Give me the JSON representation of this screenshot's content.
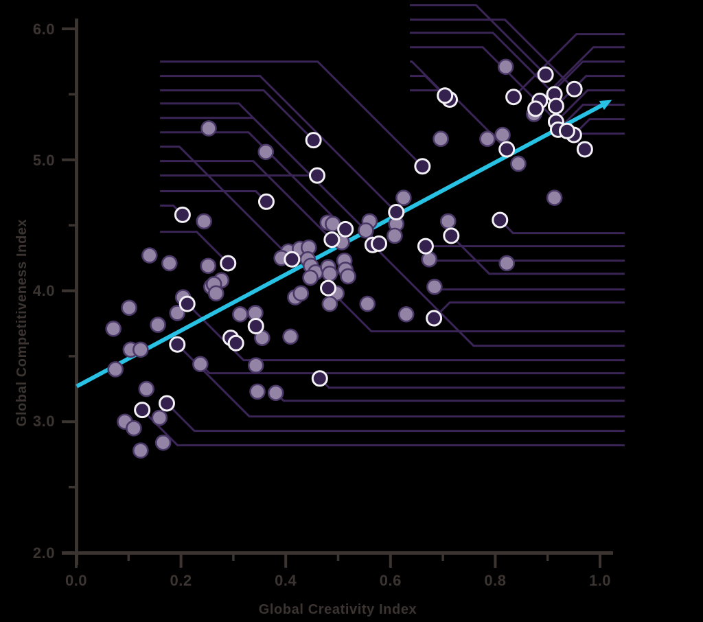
{
  "chart_data": {
    "type": "scatter",
    "title": "",
    "xlabel": "Global Creativity Index",
    "ylabel": "Global Competitiveness Index",
    "xlim": [
      0.0,
      1.0
    ],
    "ylim": [
      2.0,
      6.0
    ],
    "grid": false,
    "legend": false,
    "x_ticks": [
      "0.0",
      "0.2",
      "0.4",
      "0.6",
      "0.8",
      "1.0"
    ],
    "x_tick_values": [
      0.0,
      0.2,
      0.4,
      0.6,
      0.8,
      1.0
    ],
    "x_minor_tick_values": [
      0.1,
      0.3,
      0.5,
      0.7,
      0.9
    ],
    "y_ticks": [
      "6.0",
      "5.0",
      "4.0",
      "3.0",
      "2.0"
    ],
    "y_tick_values": [
      6.0,
      5.0,
      4.0,
      3.0,
      2.0
    ],
    "y_minor_tick_values": [
      5.5,
      4.5,
      3.5,
      2.5
    ],
    "colors": {
      "background": "#000000",
      "axis": "#3b3431",
      "point_fill": "#9384a6",
      "point_stroke": "#4a3866",
      "highlight_fill": "#34214e",
      "highlight_stroke": "#f4f2f6",
      "leader_line": "#3a2556",
      "trend_line": "#28c2e5"
    },
    "trend_line": {
      "x1": 0.001,
      "y1": 3.27,
      "x2": 1.01,
      "y2": 5.43,
      "arrow": true
    },
    "points": [
      [
        0.82,
        5.71,
        "s"
      ],
      [
        0.896,
        5.65,
        "h"
      ],
      [
        0.951,
        5.54,
        "h"
      ],
      [
        0.913,
        5.5,
        "h"
      ],
      [
        0.885,
        5.45,
        "h"
      ],
      [
        0.877,
        5.39,
        "h"
      ],
      [
        0.916,
        5.41,
        "h"
      ],
      [
        0.874,
        5.35,
        "s"
      ],
      [
        0.916,
        5.29,
        "h"
      ],
      [
        0.92,
        5.23,
        "h"
      ],
      [
        0.95,
        5.19,
        "h"
      ],
      [
        0.937,
        5.22,
        "h"
      ],
      [
        0.971,
        5.08,
        "h"
      ],
      [
        0.814,
        5.19,
        "s"
      ],
      [
        0.785,
        5.16,
        "s"
      ],
      [
        0.822,
        5.08,
        "h"
      ],
      [
        0.844,
        4.97,
        "s"
      ],
      [
        0.913,
        4.71,
        "s"
      ],
      [
        0.809,
        4.54,
        "h"
      ],
      [
        0.822,
        4.21,
        "s"
      ],
      [
        0.713,
        5.46,
        "h"
      ],
      [
        0.704,
        5.49,
        "h"
      ],
      [
        0.835,
        5.48,
        "h"
      ],
      [
        0.453,
        5.15,
        "h"
      ],
      [
        0.46,
        4.88,
        "h"
      ],
      [
        0.661,
        4.95,
        "h"
      ],
      [
        0.696,
        5.16,
        "s"
      ],
      [
        0.625,
        4.71,
        "s"
      ],
      [
        0.253,
        5.24,
        "s"
      ],
      [
        0.362,
        5.06,
        "s"
      ],
      [
        0.363,
        4.68,
        "h"
      ],
      [
        0.203,
        4.58,
        "h"
      ],
      [
        0.244,
        4.53,
        "s"
      ],
      [
        0.14,
        4.27,
        "s"
      ],
      [
        0.178,
        4.21,
        "s"
      ],
      [
        0.252,
        4.19,
        "s"
      ],
      [
        0.29,
        4.21,
        "h"
      ],
      [
        0.277,
        4.08,
        "s"
      ],
      [
        0.258,
        4.03,
        "s"
      ],
      [
        0.263,
        4.05,
        "s"
      ],
      [
        0.267,
        3.98,
        "s"
      ],
      [
        0.204,
        3.95,
        "s"
      ],
      [
        0.212,
        3.9,
        "h"
      ],
      [
        0.193,
        3.83,
        "s"
      ],
      [
        0.156,
        3.74,
        "s"
      ],
      [
        0.101,
        3.87,
        "s"
      ],
      [
        0.071,
        3.71,
        "s"
      ],
      [
        0.104,
        3.55,
        "s"
      ],
      [
        0.123,
        3.55,
        "s"
      ],
      [
        0.193,
        3.59,
        "h"
      ],
      [
        0.237,
        3.44,
        "s"
      ],
      [
        0.295,
        3.64,
        "h"
      ],
      [
        0.305,
        3.6,
        "h"
      ],
      [
        0.313,
        3.82,
        "s"
      ],
      [
        0.342,
        3.83,
        "s"
      ],
      [
        0.343,
        3.73,
        "h"
      ],
      [
        0.355,
        3.64,
        "s"
      ],
      [
        0.409,
        3.65,
        "s"
      ],
      [
        0.418,
        3.95,
        "s"
      ],
      [
        0.429,
        3.98,
        "s"
      ],
      [
        0.405,
        4.3,
        "s"
      ],
      [
        0.412,
        4.24,
        "h"
      ],
      [
        0.392,
        4.25,
        "s"
      ],
      [
        0.427,
        4.32,
        "s"
      ],
      [
        0.444,
        4.33,
        "s"
      ],
      [
        0.442,
        4.24,
        "s"
      ],
      [
        0.448,
        4.19,
        "s"
      ],
      [
        0.457,
        4.14,
        "s"
      ],
      [
        0.447,
        4.1,
        "s"
      ],
      [
        0.481,
        4.18,
        "s"
      ],
      [
        0.484,
        4.13,
        "s"
      ],
      [
        0.512,
        4.23,
        "s"
      ],
      [
        0.514,
        4.16,
        "s"
      ],
      [
        0.519,
        4.11,
        "s"
      ],
      [
        0.481,
        4.02,
        "h"
      ],
      [
        0.497,
        3.98,
        "s"
      ],
      [
        0.484,
        3.9,
        "s"
      ],
      [
        0.556,
        3.9,
        "s"
      ],
      [
        0.63,
        3.82,
        "s"
      ],
      [
        0.683,
        3.79,
        "h"
      ],
      [
        0.684,
        4.03,
        "s"
      ],
      [
        0.674,
        4.24,
        "s"
      ],
      [
        0.611,
        4.6,
        "h"
      ],
      [
        0.611,
        4.51,
        "s"
      ],
      [
        0.48,
        4.52,
        "s"
      ],
      [
        0.49,
        4.51,
        "s"
      ],
      [
        0.514,
        4.47,
        "h"
      ],
      [
        0.56,
        4.53,
        "s"
      ],
      [
        0.553,
        4.46,
        "s"
      ],
      [
        0.488,
        4.39,
        "h"
      ],
      [
        0.507,
        4.37,
        "s"
      ],
      [
        0.566,
        4.35,
        "h"
      ],
      [
        0.578,
        4.36,
        "h"
      ],
      [
        0.608,
        4.42,
        "s"
      ],
      [
        0.71,
        4.53,
        "s"
      ],
      [
        0.716,
        4.42,
        "h"
      ],
      [
        0.667,
        4.34,
        "h"
      ],
      [
        0.465,
        3.33,
        "h"
      ],
      [
        0.381,
        3.22,
        "s"
      ],
      [
        0.075,
        3.4,
        "s"
      ],
      [
        0.134,
        3.25,
        "s"
      ],
      [
        0.126,
        3.09,
        "h"
      ],
      [
        0.173,
        3.14,
        "h"
      ],
      [
        0.093,
        3.0,
        "s"
      ],
      [
        0.11,
        2.95,
        "s"
      ],
      [
        0.159,
        3.03,
        "s"
      ],
      [
        0.166,
        2.84,
        "s"
      ],
      [
        0.123,
        2.78,
        "s"
      ],
      [
        0.343,
        3.43,
        "s"
      ],
      [
        0.346,
        3.23,
        "s"
      ]
    ],
    "callouts": {
      "left_edge_x": 0.16,
      "top_edge_x": 0.637,
      "right_edge_x": 1.047,
      "left": [
        [
          5.75,
          0.661,
          4.95
        ],
        [
          5.64,
          0.611,
          4.6
        ],
        [
          5.53,
          0.453,
          5.15
        ],
        [
          5.43,
          0.578,
          4.36
        ],
        [
          5.32,
          0.553,
          4.46
        ],
        [
          5.21,
          0.514,
          4.47
        ],
        [
          5.1,
          0.412,
          4.24
        ],
        [
          4.99,
          0.488,
          4.39
        ],
        [
          4.88,
          0.46,
          4.88
        ],
        [
          4.76,
          0.363,
          4.68
        ],
        [
          4.65,
          0.203,
          4.58
        ],
        [
          4.45,
          0.29,
          4.21
        ]
      ],
      "top": [
        [
          6.18,
          0.896,
          5.65
        ],
        [
          6.07,
          0.951,
          5.54
        ],
        [
          5.97,
          0.913,
          5.5
        ],
        [
          5.86,
          0.971,
          5.08
        ],
        [
          5.75,
          0.713,
          5.46
        ],
        [
          5.64,
          0.704,
          5.49
        ],
        [
          5.53,
          0.822,
          5.08
        ]
      ],
      "right": [
        [
          5.96,
          0.835,
          5.48
        ],
        [
          5.86,
          0.885,
          5.45
        ],
        [
          5.75,
          0.877,
          5.39
        ],
        [
          5.64,
          0.916,
          5.41
        ],
        [
          5.53,
          0.916,
          5.29
        ],
        [
          5.42,
          0.92,
          5.23
        ],
        [
          5.31,
          0.95,
          5.19
        ],
        [
          5.2,
          0.937,
          5.22
        ],
        [
          4.44,
          0.809,
          4.54
        ],
        [
          4.34,
          0.667,
          4.34
        ],
        [
          4.23,
          0.674,
          4.24
        ],
        [
          4.13,
          0.716,
          4.42
        ],
        [
          4.01,
          0.684,
          4.03
        ],
        [
          3.91,
          0.683,
          3.79
        ],
        [
          3.69,
          0.481,
          4.02
        ],
        [
          3.58,
          0.566,
          4.35
        ],
        [
          3.47,
          0.212,
          3.9
        ],
        [
          3.37,
          0.237,
          3.44
        ],
        [
          3.26,
          0.465,
          3.33
        ],
        [
          3.16,
          0.381,
          3.22
        ],
        [
          3.04,
          0.193,
          3.59
        ],
        [
          2.93,
          0.173,
          3.14
        ],
        [
          2.82,
          0.126,
          3.09
        ]
      ]
    }
  }
}
